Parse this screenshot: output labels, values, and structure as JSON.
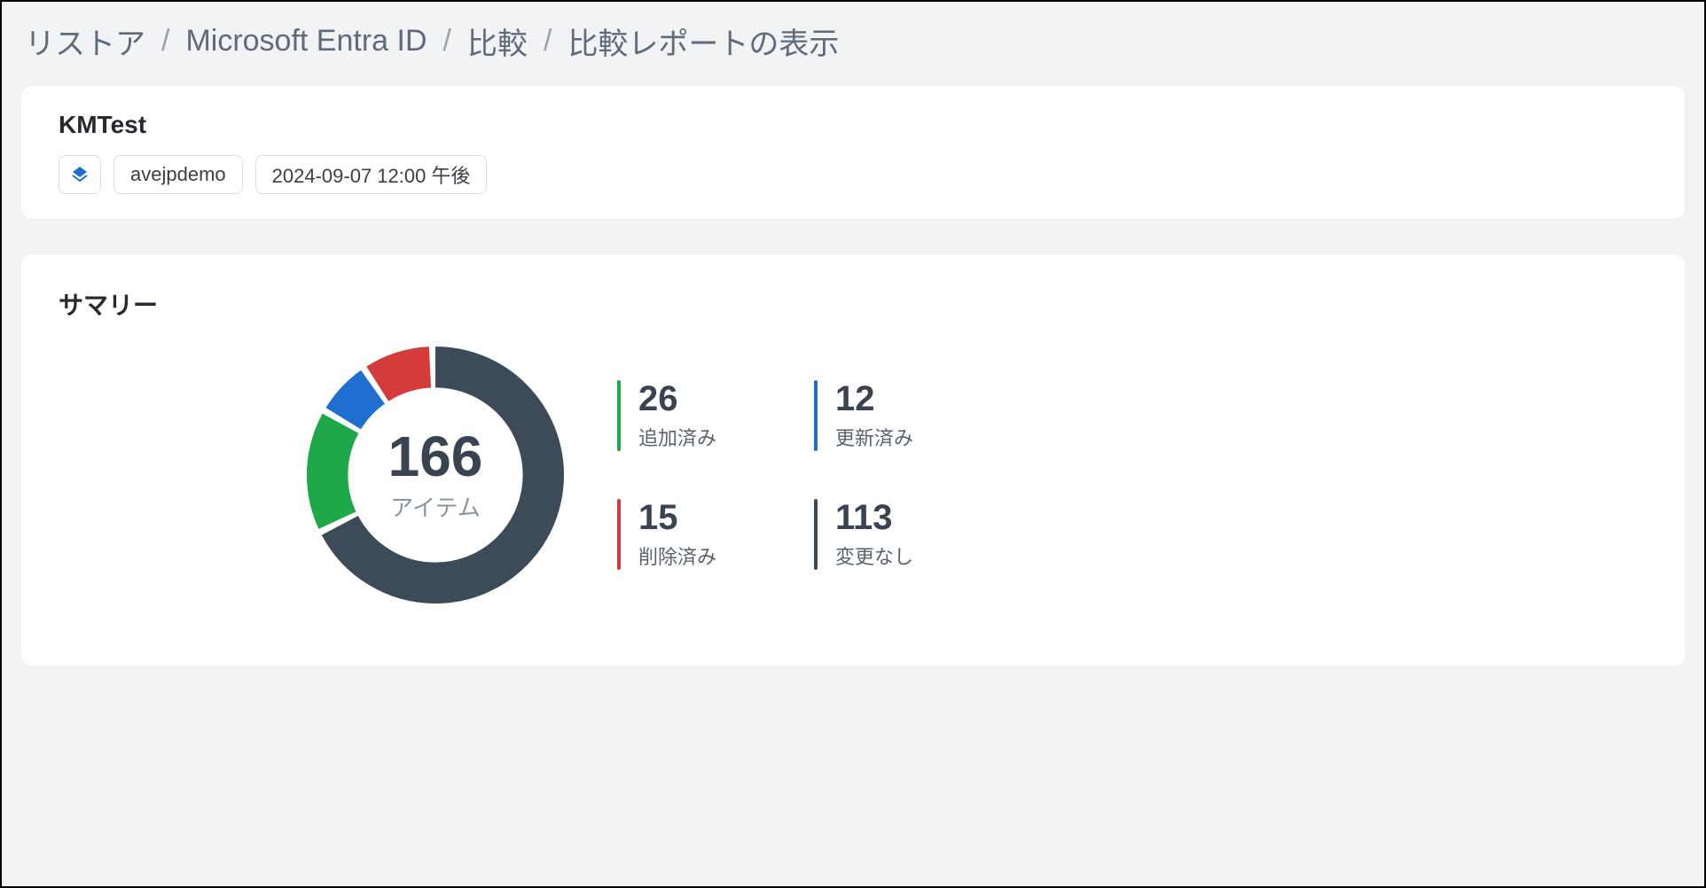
{
  "breadcrumb": {
    "items": [
      "リストア",
      "Microsoft Entra ID",
      "比較",
      "比較レポートの表示"
    ],
    "separator": "/"
  },
  "header": {
    "title": "KMTest",
    "chips": {
      "tenant": "avejpdemo",
      "timestamp": "2024-09-07 12:00 午後"
    }
  },
  "summary": {
    "title": "サマリー",
    "donut": {
      "total": 166,
      "total_label": "アイテム",
      "segments": [
        {
          "key": "unchanged",
          "value": 113,
          "color": "#3d4a57"
        },
        {
          "key": "added",
          "value": 26,
          "color": "#1fa84a"
        },
        {
          "key": "updated",
          "value": 12,
          "color": "#1f6fd1"
        },
        {
          "key": "deleted",
          "value": 15,
          "color": "#d43c3c"
        }
      ],
      "stroke_width": 32,
      "gap_deg": 3,
      "background_color": "#ffffff"
    },
    "stats": [
      {
        "value": 26,
        "label": "追加済み",
        "color": "#1fa84a"
      },
      {
        "value": 12,
        "label": "更新済み",
        "color": "#1f6fd1"
      },
      {
        "value": 15,
        "label": "削除済み",
        "color": "#d43c3c"
      },
      {
        "value": 113,
        "label": "変更なし",
        "color": "#3d4a57"
      }
    ]
  },
  "colors": {
    "page_bg": "#f1f3f5",
    "card_bg": "#ffffff",
    "text_primary": "#262a2e",
    "text_muted": "#8a949e"
  }
}
